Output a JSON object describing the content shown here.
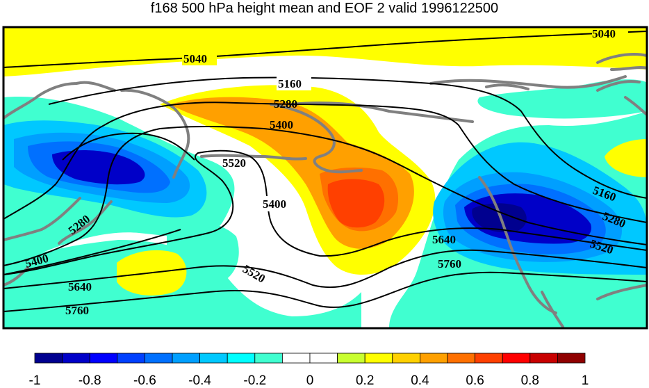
{
  "title": "f168 500 hPa height mean and EOF 2 valid 1996122500",
  "contour_labels": [
    "5040",
    "5040",
    "5160",
    "5160",
    "5280",
    "5280",
    "5280",
    "5400",
    "5400",
    "5400",
    "5520",
    "5520",
    "5520",
    "5640",
    "5640",
    "5760",
    "5760"
  ],
  "colorbar": {
    "colors": [
      "#00008f",
      "#0000c8",
      "#0000ff",
      "#0040ff",
      "#0070ff",
      "#009fff",
      "#00c8ff",
      "#00ffff",
      "#40ffd0",
      "#ffffff",
      "#ffffff",
      "#c8ff30",
      "#ffff00",
      "#ffd000",
      "#ffa000",
      "#ff7000",
      "#ff4000",
      "#ff0000",
      "#c80000",
      "#8f0000"
    ],
    "tick_labels": [
      "-1",
      "-0.8",
      "-0.6",
      "-0.4",
      "-0.2",
      "0",
      "0.2",
      "0.4",
      "0.6",
      "0.8",
      "1"
    ]
  },
  "colors": {
    "coastline": "#808080",
    "contour": "#000000",
    "frame": "#000000"
  }
}
